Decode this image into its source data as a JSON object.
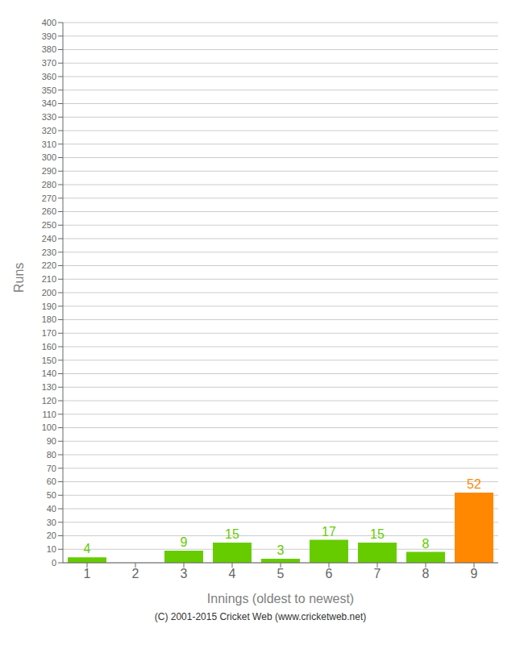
{
  "chart_data": {
    "type": "bar",
    "xlabel": "Innings (oldest to newest)",
    "ylabel": "Runs",
    "categories": [
      "1",
      "2",
      "3",
      "4",
      "5",
      "6",
      "7",
      "8",
      "9"
    ],
    "values": [
      4,
      0,
      9,
      15,
      3,
      17,
      15,
      8,
      52
    ],
    "colors": [
      "#66cc00",
      "#66cc00",
      "#66cc00",
      "#66cc00",
      "#66cc00",
      "#66cc00",
      "#66cc00",
      "#66cc00",
      "#ff8800"
    ],
    "ylim": [
      0,
      400
    ],
    "yticks": [
      0,
      10,
      20,
      30,
      40,
      50,
      60,
      70,
      80,
      90,
      100,
      110,
      120,
      130,
      140,
      150,
      160,
      170,
      180,
      190,
      200,
      210,
      220,
      230,
      240,
      250,
      260,
      270,
      280,
      290,
      300,
      310,
      320,
      330,
      340,
      350,
      360,
      370,
      380,
      390,
      400
    ],
    "grid": true,
    "data_labels": true,
    "annotations": [
      "(C) 2001-2015 Cricket Web (www.cricketweb.net)"
    ]
  }
}
